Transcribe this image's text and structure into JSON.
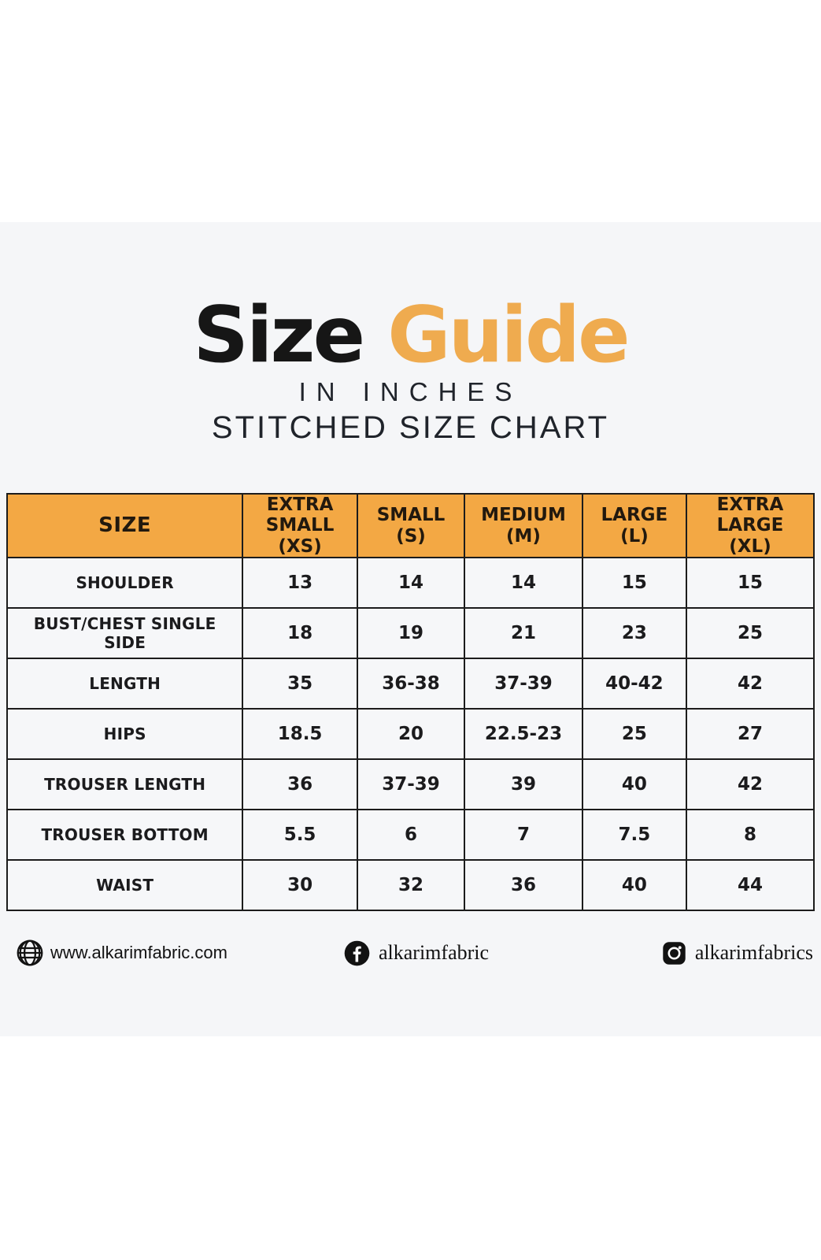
{
  "title": {
    "word_black": "Size",
    "word_accent": "Guide",
    "unit_line": "IN INCHES",
    "chart_line": "STITCHED SIZE CHART"
  },
  "colors": {
    "accent_orange_header": "#f3a844",
    "accent_orange_title": "#efab4f",
    "panel_background": "#f5f6f8",
    "table_border": "#1c1c1c",
    "text_dark": "#161616"
  },
  "chart_data": {
    "type": "table",
    "title": "Size Guide in inches — Stitched Size Chart",
    "columns": [
      "SIZE",
      "EXTRA SMALL (XS)",
      "SMALL (S)",
      "MEDIUM (M)",
      "LARGE (L)",
      "EXTRA LARGE (XL)"
    ],
    "rows": [
      [
        "SHOULDER",
        "13",
        "14",
        "14",
        "15",
        "15"
      ],
      [
        "BUST/CHEST SINGLE SIDE",
        "18",
        "19",
        "21",
        "23",
        "25"
      ],
      [
        "LENGTH",
        "35",
        "36-38",
        "37-39",
        "40-42",
        "42"
      ],
      [
        "HIPS",
        "18.5",
        "20",
        "22.5-23",
        "25",
        "27"
      ],
      [
        "TROUSER LENGTH",
        "36",
        "37-39",
        "39",
        "40",
        "42"
      ],
      [
        "TROUSER BOTTOM",
        "5.5",
        "6",
        "7",
        "7.5",
        "8"
      ],
      [
        "WAIST",
        "30",
        "32",
        "36",
        "40",
        "44"
      ]
    ]
  },
  "table": {
    "header_lines": [
      [
        "SIZE"
      ],
      [
        "EXTRA",
        "SMALL (XS)"
      ],
      [
        "SMALL",
        "(S)"
      ],
      [
        "MEDIUM",
        "(M)"
      ],
      [
        "LARGE",
        "(L)"
      ],
      [
        "EXTRA LARGE",
        "(XL)"
      ]
    ]
  },
  "footer": {
    "website": "www.alkarimfabric.com",
    "facebook_handle": "alkarimfabric",
    "instagram_handle": "alkarimfabrics"
  }
}
